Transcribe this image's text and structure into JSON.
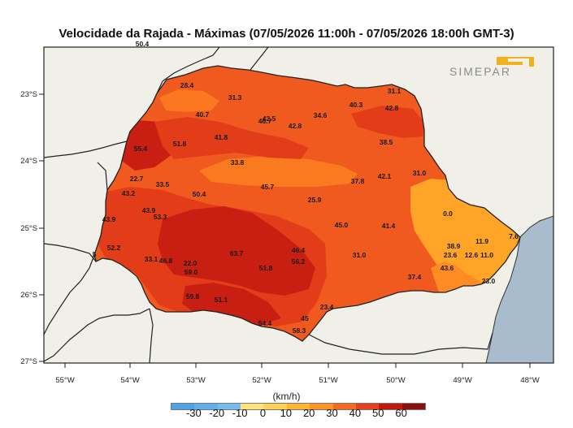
{
  "title": "Velocidade da Rajada - Máximas (07/05/2026 11:00h - 07/05/2026 18:00h GMT-3)",
  "logo_text": "SIMEPAR",
  "unit_label": "(km/h)",
  "lat_labels": [
    "23°S",
    "24°S",
    "25°S",
    "26°S",
    "27°S"
  ],
  "lon_labels": [
    "55°W",
    "54°W",
    "53°W",
    "52°W",
    "51°W",
    "50°W",
    "49°W",
    "48°W"
  ],
  "colorbar": {
    "ticks": [
      "-30",
      "-20",
      "-10",
      "0",
      "10",
      "20",
      "30",
      "40",
      "50",
      "60"
    ],
    "colors": [
      "#4aa3e6",
      "#5eb1ea",
      "#72bdec",
      "#ffe27a",
      "#ffd154",
      "#ffb52e",
      "#ff9422",
      "#f86a1c",
      "#e8411a",
      "#c4180f",
      "#8e0f0a"
    ]
  },
  "colors": {
    "land": "#f0efe8",
    "ocean": "#a9bccd",
    "high": "#cc1f12",
    "mid": "#f05a1f",
    "low": "#ffa426"
  },
  "stations": [
    {
      "value": "50.4"
    },
    {
      "value": "28.4"
    },
    {
      "value": "31.3"
    },
    {
      "value": "31.1"
    },
    {
      "value": "40.3"
    },
    {
      "value": "42.8"
    },
    {
      "value": "40.7"
    },
    {
      "value": "42.5"
    },
    {
      "value": "46.7"
    },
    {
      "value": "34.6"
    },
    {
      "value": "42.8"
    },
    {
      "value": "41.8"
    },
    {
      "value": "55.4"
    },
    {
      "value": "51.8"
    },
    {
      "value": "38.5"
    },
    {
      "value": "33.8"
    },
    {
      "value": "22.7"
    },
    {
      "value": "33.5"
    },
    {
      "value": "43.2"
    },
    {
      "value": "50.4"
    },
    {
      "value": "45.7"
    },
    {
      "value": "37.8"
    },
    {
      "value": "42.1"
    },
    {
      "value": "31.0"
    },
    {
      "value": "25.9"
    },
    {
      "value": "0.0"
    },
    {
      "value": "43.9"
    },
    {
      "value": "53.3"
    },
    {
      "value": "43.9"
    },
    {
      "value": "45.0"
    },
    {
      "value": "41.4"
    },
    {
      "value": "11.9"
    },
    {
      "value": "7.6"
    },
    {
      "value": "52.2"
    },
    {
      "value": "5"
    },
    {
      "value": "38.9"
    },
    {
      "value": "23.6"
    },
    {
      "value": "12.6"
    },
    {
      "value": "11.0"
    },
    {
      "value": "46.4"
    },
    {
      "value": "63.7"
    },
    {
      "value": "33.1"
    },
    {
      "value": "46.8"
    },
    {
      "value": "22.0"
    },
    {
      "value": "56.2"
    },
    {
      "value": "31.0"
    },
    {
      "value": "43.6"
    },
    {
      "value": "51.8"
    },
    {
      "value": "59.0"
    },
    {
      "value": "37.4"
    },
    {
      "value": "23.0"
    },
    {
      "value": "59.8"
    },
    {
      "value": "51.1"
    },
    {
      "value": "23.4"
    },
    {
      "value": "45"
    },
    {
      "value": "54.4"
    },
    {
      "value": "58.3"
    }
  ]
}
